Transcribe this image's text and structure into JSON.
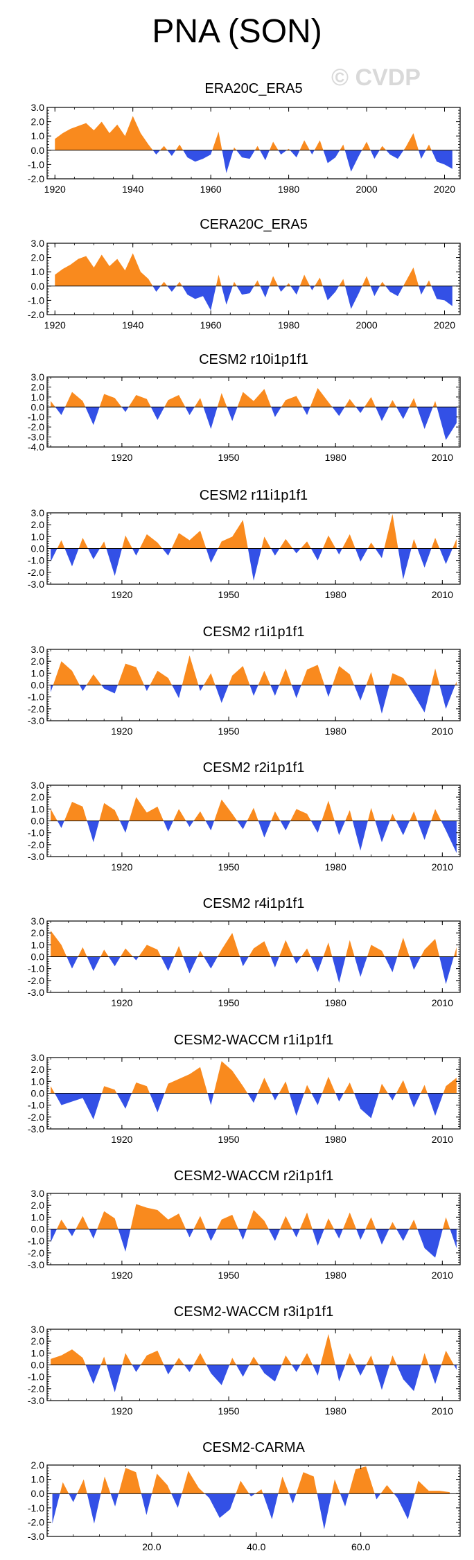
{
  "figure": {
    "title": "PNA (SON)",
    "watermark": "© CVDP",
    "colors": {
      "positive": "#f98a1e",
      "negative": "#3350e6",
      "zero_line": "#000000"
    }
  },
  "chart_data": [
    {
      "type": "area",
      "title": "ERA20C_ERA5",
      "x": [
        1920,
        1922,
        1924,
        1926,
        1928,
        1930,
        1932,
        1934,
        1936,
        1938,
        1940,
        1942,
        1944,
        1946,
        1948,
        1950,
        1952,
        1954,
        1956,
        1958,
        1960,
        1962,
        1964,
        1966,
        1968,
        1970,
        1972,
        1974,
        1976,
        1978,
        1980,
        1982,
        1984,
        1986,
        1988,
        1990,
        1992,
        1994,
        1996,
        1998,
        2000,
        2002,
        2004,
        2006,
        2008,
        2010,
        2012,
        2014,
        2016,
        2018,
        2020,
        2022
      ],
      "values": [
        0.8,
        1.2,
        1.5,
        1.7,
        1.9,
        1.4,
        2.0,
        1.2,
        1.8,
        1.0,
        2.4,
        1.2,
        0.4,
        -0.3,
        0.3,
        -0.4,
        0.4,
        -0.5,
        -0.8,
        -0.6,
        -0.3,
        1.3,
        -1.6,
        0.2,
        -0.5,
        -0.6,
        0.3,
        -0.7,
        0.6,
        -0.3,
        0.1,
        -0.5,
        0.7,
        -0.3,
        0.7,
        -0.9,
        -0.5,
        0.4,
        -1.5,
        -0.4,
        0.6,
        -0.6,
        0.3,
        -0.3,
        -0.6,
        0.2,
        1.2,
        -0.6,
        0.4,
        -0.8,
        -1.0,
        -1.3
      ],
      "xlim": [
        1918,
        2024
      ],
      "ylim": [
        -2,
        3
      ],
      "xticks": [
        1920,
        1940,
        1960,
        1980,
        2000,
        2020
      ],
      "xtick_labels": [
        "1920",
        "1940",
        "1960",
        "1980",
        "2000",
        "2020"
      ],
      "yticks": [
        -2,
        -1,
        0,
        1,
        2,
        3
      ],
      "ytick_labels": [
        "-2.0",
        "-1.0",
        "0.0",
        "1.0",
        "2.0",
        "3.0"
      ]
    },
    {
      "type": "area",
      "title": "CERA20C_ERA5",
      "x": [
        1920,
        1922,
        1924,
        1926,
        1928,
        1930,
        1932,
        1934,
        1936,
        1938,
        1940,
        1942,
        1944,
        1946,
        1948,
        1950,
        1952,
        1954,
        1956,
        1958,
        1960,
        1962,
        1964,
        1966,
        1968,
        1970,
        1972,
        1974,
        1976,
        1978,
        1980,
        1982,
        1984,
        1986,
        1988,
        1990,
        1992,
        1994,
        1996,
        1998,
        2000,
        2002,
        2004,
        2006,
        2008,
        2010,
        2012,
        2014,
        2016,
        2018,
        2020,
        2022
      ],
      "values": [
        0.8,
        1.2,
        1.5,
        1.9,
        2.1,
        1.3,
        2.2,
        1.4,
        1.9,
        1.1,
        2.3,
        1.0,
        0.5,
        -0.4,
        0.3,
        -0.4,
        0.3,
        -0.6,
        -0.9,
        -0.7,
        -1.7,
        0.8,
        -1.3,
        0.3,
        -0.6,
        -0.5,
        0.4,
        -0.8,
        0.7,
        -0.4,
        0.2,
        -0.6,
        0.8,
        -0.3,
        0.6,
        -1.0,
        -0.4,
        0.5,
        -1.6,
        -0.5,
        0.7,
        -0.7,
        0.3,
        -0.4,
        -0.7,
        0.3,
        1.3,
        -0.6,
        0.4,
        -0.9,
        -1.0,
        -1.4
      ],
      "xlim": [
        1918,
        2024
      ],
      "ylim": [
        -2,
        3
      ],
      "xticks": [
        1920,
        1940,
        1960,
        1980,
        2000,
        2020
      ],
      "xtick_labels": [
        "1920",
        "1940",
        "1960",
        "1980",
        "2000",
        "2020"
      ],
      "yticks": [
        -2,
        -1,
        0,
        1,
        2,
        3
      ],
      "ytick_labels": [
        "-2.0",
        "-1.0",
        "0.0",
        "1.0",
        "2.0",
        "3.0"
      ]
    },
    {
      "type": "area",
      "title": "CESM2 r10i1p1f1",
      "x": [
        1900,
        1903,
        1906,
        1909,
        1912,
        1915,
        1918,
        1921,
        1924,
        1927,
        1930,
        1933,
        1936,
        1939,
        1942,
        1945,
        1948,
        1951,
        1954,
        1957,
        1960,
        1963,
        1966,
        1969,
        1972,
        1975,
        1978,
        1981,
        1984,
        1987,
        1990,
        1993,
        1996,
        1999,
        2002,
        2005,
        2008,
        2011,
        2014
      ],
      "values": [
        0.6,
        -0.8,
        1.5,
        0.6,
        -1.8,
        1.3,
        0.9,
        -0.5,
        1.2,
        0.8,
        -1.3,
        0.7,
        1.2,
        -0.8,
        0.9,
        -2.2,
        1.4,
        -1.4,
        1.5,
        0.6,
        1.8,
        -1.0,
        0.7,
        1.1,
        -0.8,
        1.9,
        0.5,
        -0.9,
        0.8,
        -0.6,
        1.0,
        -1.4,
        0.7,
        -1.2,
        0.9,
        -2.2,
        0.6,
        -3.3,
        -1.6
      ],
      "xlim": [
        1899,
        2015
      ],
      "ylim": [
        -4,
        3
      ],
      "xticks": [
        1920,
        1950,
        1980,
        2010
      ],
      "xtick_labels": [
        "1920",
        "1950",
        "1980",
        "2010"
      ],
      "yticks": [
        -4,
        -3,
        -2,
        -1,
        0,
        1,
        2,
        3
      ],
      "ytick_labels": [
        "-4.0",
        "-3.0",
        "-2.0",
        "-1.0",
        "0.0",
        "1.0",
        "2.0",
        "3.0"
      ]
    },
    {
      "type": "area",
      "title": "CESM2 r11i1p1f1",
      "x": [
        1900,
        1903,
        1906,
        1909,
        1912,
        1915,
        1918,
        1921,
        1924,
        1927,
        1930,
        1933,
        1936,
        1939,
        1942,
        1945,
        1948,
        1951,
        1954,
        1957,
        1960,
        1963,
        1966,
        1969,
        1972,
        1975,
        1978,
        1981,
        1984,
        1987,
        1990,
        1993,
        1996,
        1999,
        2002,
        2005,
        2008,
        2011,
        2014
      ],
      "values": [
        -1.1,
        0.7,
        -1.5,
        0.9,
        -0.9,
        0.6,
        -2.3,
        1.1,
        -0.6,
        1.2,
        0.5,
        -0.6,
        1.3,
        0.7,
        1.5,
        -1.2,
        0.6,
        1.0,
        2.4,
        -2.7,
        1.0,
        -0.6,
        0.8,
        -0.4,
        0.6,
        -1.0,
        1.1,
        -0.5,
        1.2,
        -1.1,
        0.5,
        -0.8,
        2.9,
        -2.6,
        0.8,
        -1.6,
        0.9,
        -1.3,
        0.8
      ],
      "xlim": [
        1899,
        2015
      ],
      "ylim": [
        -3,
        3
      ],
      "xticks": [
        1920,
        1950,
        1980,
        2010
      ],
      "xtick_labels": [
        "1920",
        "1950",
        "1980",
        "2010"
      ],
      "yticks": [
        -3,
        -2,
        -1,
        0,
        1,
        2,
        3
      ],
      "ytick_labels": [
        "-3.0",
        "-2.0",
        "-1.0",
        "0.0",
        "1.0",
        "2.0",
        "3.0"
      ]
    },
    {
      "type": "area",
      "title": "CESM2 r1i1p1f1",
      "x": [
        1900,
        1903,
        1906,
        1909,
        1912,
        1915,
        1918,
        1921,
        1924,
        1927,
        1930,
        1933,
        1936,
        1939,
        1942,
        1945,
        1948,
        1951,
        1954,
        1957,
        1960,
        1963,
        1966,
        1969,
        1972,
        1975,
        1978,
        1981,
        1984,
        1987,
        1990,
        1993,
        1996,
        1999,
        2002,
        2005,
        2008,
        2011,
        2014
      ],
      "values": [
        -0.6,
        2.0,
        1.2,
        -0.5,
        0.9,
        -0.3,
        -0.7,
        1.8,
        1.5,
        -0.5,
        1.2,
        0.6,
        -1.1,
        2.5,
        -0.5,
        1.0,
        -1.5,
        0.8,
        1.6,
        -0.9,
        1.2,
        -0.9,
        1.4,
        -1.1,
        1.3,
        1.7,
        -1.0,
        1.6,
        0.9,
        -1.3,
        1.1,
        -2.4,
        1.0,
        0.6,
        -0.8,
        -2.3,
        1.4,
        -2.0,
        0.3
      ],
      "xlim": [
        1899,
        2015
      ],
      "ylim": [
        -3,
        3
      ],
      "xticks": [
        1920,
        1950,
        1980,
        2010
      ],
      "xtick_labels": [
        "1920",
        "1950",
        "1980",
        "2010"
      ],
      "yticks": [
        -3,
        -2,
        -1,
        0,
        1,
        2,
        3
      ],
      "ytick_labels": [
        "-3.0",
        "-2.0",
        "-1.0",
        "0.0",
        "1.0",
        "2.0",
        "3.0"
      ]
    },
    {
      "type": "area",
      "title": "CESM2 r2i1p1f1",
      "x": [
        1900,
        1903,
        1906,
        1909,
        1912,
        1915,
        1918,
        1921,
        1924,
        1927,
        1930,
        1933,
        1936,
        1939,
        1942,
        1945,
        1948,
        1951,
        1954,
        1957,
        1960,
        1963,
        1966,
        1969,
        1972,
        1975,
        1978,
        1981,
        1984,
        1987,
        1990,
        1993,
        1996,
        1999,
        2002,
        2005,
        2008,
        2011,
        2014
      ],
      "values": [
        1.0,
        -0.6,
        1.6,
        1.2,
        -1.8,
        1.5,
        0.9,
        -1.0,
        2.0,
        0.7,
        1.2,
        -0.9,
        1.0,
        -0.5,
        0.8,
        -0.8,
        1.8,
        0.6,
        -0.7,
        1.1,
        -1.4,
        0.8,
        -0.8,
        1.0,
        0.6,
        -1.0,
        1.7,
        -1.2,
        0.9,
        -2.5,
        1.1,
        -1.8,
        0.6,
        -1.2,
        0.8,
        -1.6,
        1.0,
        -0.8,
        -2.7
      ],
      "xlim": [
        1899,
        2015
      ],
      "ylim": [
        -3,
        3
      ],
      "xticks": [
        1920,
        1950,
        1980,
        2010
      ],
      "xtick_labels": [
        "1920",
        "1950",
        "1980",
        "2010"
      ],
      "yticks": [
        -3,
        -2,
        -1,
        0,
        1,
        2,
        3
      ],
      "ytick_labels": [
        "-3.0",
        "-2.0",
        "-1.0",
        "0.0",
        "1.0",
        "2.0",
        "3.0"
      ]
    },
    {
      "type": "area",
      "title": "CESM2 r4i1p1f1",
      "x": [
        1900,
        1903,
        1906,
        1909,
        1912,
        1915,
        1918,
        1921,
        1924,
        1927,
        1930,
        1933,
        1936,
        1939,
        1942,
        1945,
        1948,
        1951,
        1954,
        1957,
        1960,
        1963,
        1966,
        1969,
        1972,
        1975,
        1978,
        1981,
        1984,
        1987,
        1990,
        1993,
        1996,
        1999,
        2002,
        2005,
        2008,
        2011,
        2014
      ],
      "values": [
        2.2,
        1.0,
        -1.0,
        0.8,
        -1.2,
        0.6,
        -0.8,
        0.7,
        -0.3,
        1.0,
        0.6,
        -1.2,
        0.9,
        -1.4,
        0.5,
        -1.0,
        0.6,
        2.0,
        -0.8,
        0.7,
        1.3,
        -0.9,
        1.4,
        -0.6,
        0.7,
        -1.3,
        1.2,
        -2.2,
        1.4,
        -1.7,
        1.0,
        0.5,
        -1.3,
        1.6,
        -1.1,
        0.6,
        1.5,
        -2.3,
        0.8
      ],
      "xlim": [
        1899,
        2015
      ],
      "ylim": [
        -3,
        3
      ],
      "xticks": [
        1920,
        1950,
        1980,
        2010
      ],
      "xtick_labels": [
        "1920",
        "1950",
        "1980",
        "2010"
      ],
      "yticks": [
        -3,
        -2,
        -1,
        0,
        1,
        2,
        3
      ],
      "ytick_labels": [
        "-3.0",
        "-2.0",
        "-1.0",
        "0.0",
        "1.0",
        "2.0",
        "3.0"
      ]
    },
    {
      "type": "area",
      "title": "CESM2-WACCM r1i1p1f1",
      "x": [
        1900,
        1903,
        1906,
        1909,
        1912,
        1915,
        1918,
        1921,
        1924,
        1927,
        1930,
        1933,
        1936,
        1939,
        1942,
        1945,
        1948,
        1951,
        1954,
        1957,
        1960,
        1963,
        1966,
        1969,
        1972,
        1975,
        1978,
        1981,
        1984,
        1987,
        1990,
        1993,
        1996,
        1999,
        2002,
        2005,
        2008,
        2011,
        2014
      ],
      "values": [
        0.6,
        -1.0,
        -0.7,
        -0.4,
        -2.2,
        0.6,
        0.3,
        -1.3,
        0.9,
        0.6,
        -1.6,
        0.8,
        1.2,
        1.6,
        2.2,
        -1.0,
        2.7,
        1.9,
        0.6,
        -0.8,
        1.3,
        -0.6,
        1.0,
        -1.9,
        0.7,
        -1.0,
        1.4,
        -0.7,
        0.9,
        -1.3,
        -2.1,
        0.8,
        -0.6,
        1.1,
        -1.2,
        0.7,
        -1.9,
        0.6,
        1.3
      ],
      "xlim": [
        1899,
        2015
      ],
      "ylim": [
        -3,
        3
      ],
      "xticks": [
        1920,
        1950,
        1980,
        2010
      ],
      "xtick_labels": [
        "1920",
        "1950",
        "1980",
        "2010"
      ],
      "yticks": [
        -3,
        -2,
        -1,
        0,
        1,
        2,
        3
      ],
      "ytick_labels": [
        "-3.0",
        "-2.0",
        "-1.0",
        "0.0",
        "1.0",
        "2.0",
        "3.0"
      ]
    },
    {
      "type": "area",
      "title": "CESM2-WACCM r2i1p1f1",
      "x": [
        1900,
        1903,
        1906,
        1909,
        1912,
        1915,
        1918,
        1921,
        1924,
        1927,
        1930,
        1933,
        1936,
        1939,
        1942,
        1945,
        1948,
        1951,
        1954,
        1957,
        1960,
        1963,
        1966,
        1969,
        1972,
        1975,
        1978,
        1981,
        1984,
        1987,
        1990,
        1993,
        1996,
        1999,
        2002,
        2005,
        2008,
        2011,
        2014
      ],
      "values": [
        -1.1,
        0.8,
        -0.6,
        1.1,
        -0.8,
        1.5,
        0.9,
        -1.9,
        2.1,
        1.8,
        1.6,
        0.8,
        1.3,
        -0.7,
        1.1,
        -1.0,
        0.8,
        1.2,
        -0.9,
        1.6,
        0.7,
        -1.0,
        1.1,
        -0.7,
        1.4,
        -1.4,
        0.9,
        -0.8,
        1.4,
        -0.9,
        1.0,
        -1.3,
        0.6,
        -1.0,
        0.8,
        -1.6,
        -2.4,
        1.0,
        -1.6
      ],
      "xlim": [
        1899,
        2015
      ],
      "ylim": [
        -3,
        3
      ],
      "xticks": [
        1920,
        1950,
        1980,
        2010
      ],
      "xtick_labels": [
        "1920",
        "1950",
        "1980",
        "2010"
      ],
      "yticks": [
        -3,
        -2,
        -1,
        0,
        1,
        2,
        3
      ],
      "ytick_labels": [
        "-3.0",
        "-2.0",
        "-1.0",
        "0.0",
        "1.0",
        "2.0",
        "3.0"
      ]
    },
    {
      "type": "area",
      "title": "CESM2-WACCM r3i1p1f1",
      "x": [
        1900,
        1903,
        1906,
        1909,
        1912,
        1915,
        1918,
        1921,
        1924,
        1927,
        1930,
        1933,
        1936,
        1939,
        1942,
        1945,
        1948,
        1951,
        1954,
        1957,
        1960,
        1963,
        1966,
        1969,
        1972,
        1975,
        1978,
        1981,
        1984,
        1987,
        1990,
        1993,
        1996,
        1999,
        2002,
        2005,
        2008,
        2011,
        2014
      ],
      "values": [
        0.5,
        0.8,
        1.3,
        0.6,
        -1.6,
        0.7,
        -2.3,
        1.0,
        -0.6,
        0.8,
        1.2,
        -0.8,
        0.6,
        -0.6,
        1.0,
        -0.7,
        -1.7,
        0.6,
        -1.0,
        0.7,
        -0.7,
        -1.4,
        0.8,
        -0.6,
        1.0,
        -0.9,
        2.6,
        -1.4,
        1.0,
        -0.9,
        0.8,
        -2.1,
        0.8,
        -1.2,
        -2.2,
        1.0,
        -1.6,
        1.2,
        -0.4
      ],
      "xlim": [
        1899,
        2015
      ],
      "ylim": [
        -3,
        3
      ],
      "xticks": [
        1920,
        1950,
        1980,
        2010
      ],
      "xtick_labels": [
        "1920",
        "1950",
        "1980",
        "2010"
      ],
      "yticks": [
        -3,
        -2,
        -1,
        0,
        1,
        2,
        3
      ],
      "ytick_labels": [
        "-3.0",
        "-2.0",
        "-1.0",
        "0.0",
        "1.0",
        "2.0",
        "3.0"
      ]
    },
    {
      "type": "area",
      "title": "CESM2-CARMA",
      "x": [
        1,
        3,
        5,
        7,
        9,
        11,
        13,
        15,
        17,
        19,
        21,
        23,
        25,
        27,
        29,
        31,
        33,
        35,
        37,
        39,
        41,
        43,
        45,
        47,
        49,
        51,
        53,
        55,
        57,
        59,
        61,
        63,
        65,
        67,
        69,
        71,
        73,
        75,
        77
      ],
      "values": [
        -2.1,
        0.8,
        -0.6,
        1.0,
        -2.1,
        1.2,
        -0.9,
        1.8,
        1.5,
        -1.5,
        1.4,
        0.6,
        -1.0,
        1.6,
        0.4,
        -0.3,
        -1.7,
        -1.1,
        0.9,
        -0.2,
        0.3,
        -1.8,
        1.2,
        -0.7,
        1.5,
        1.2,
        -2.5,
        1.0,
        -0.9,
        1.7,
        1.9,
        -0.4,
        0.6,
        -0.3,
        -1.8,
        0.9,
        0.2,
        0.2,
        0.1
      ],
      "xlim": [
        0,
        79
      ],
      "ylim": [
        -3,
        2
      ],
      "xticks": [
        20,
        40,
        60
      ],
      "xtick_labels": [
        "20.0",
        "40.0",
        "60.0"
      ],
      "yticks": [
        -3,
        -2,
        -1,
        0,
        1,
        2
      ],
      "ytick_labels": [
        "-3.0",
        "-2.0",
        "-1.0",
        "0.0",
        "1.0",
        "2.0"
      ]
    }
  ]
}
